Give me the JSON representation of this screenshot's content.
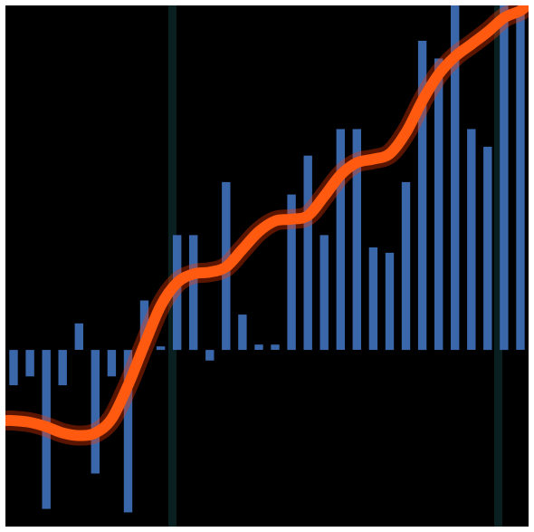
{
  "chart_data": {
    "type": "bar",
    "title": "",
    "xlabel": "",
    "ylabel": "",
    "baseline": 0,
    "ylim": [
      -10,
      19.5
    ],
    "grid": false,
    "legend": "none",
    "colors": {
      "background": "#000000",
      "bar": "#3f6fb8",
      "trend_line": "#ff5a10",
      "dark_columns": "#0a1f20"
    },
    "series": [
      {
        "kind": "bar",
        "values": [
          -2.0,
          -1.5,
          -9.0,
          -2.0,
          1.5,
          -7.0,
          -1.5,
          -9.2,
          2.8,
          0.2,
          6.5,
          6.5,
          -0.6,
          9.5,
          2.0,
          0.3,
          0.3,
          8.8,
          11.0,
          6.5,
          12.5,
          12.5,
          5.8,
          5.5,
          9.5,
          17.5,
          16.5,
          19.5,
          12.5,
          11.5,
          19.5,
          19.0
        ]
      },
      {
        "kind": "line",
        "values": [
          -4.0,
          -4.1,
          -4.35,
          -4.7,
          -4.85,
          -4.7,
          -3.9,
          -2.0,
          0.3,
          2.5,
          3.8,
          4.3,
          4.4,
          4.7,
          5.7,
          6.7,
          7.3,
          7.4,
          7.6,
          8.7,
          9.9,
          10.6,
          10.8,
          11.1,
          12.3,
          14.1,
          15.6,
          16.6,
          17.3,
          18.0,
          18.8,
          19.2
        ]
      }
    ]
  }
}
